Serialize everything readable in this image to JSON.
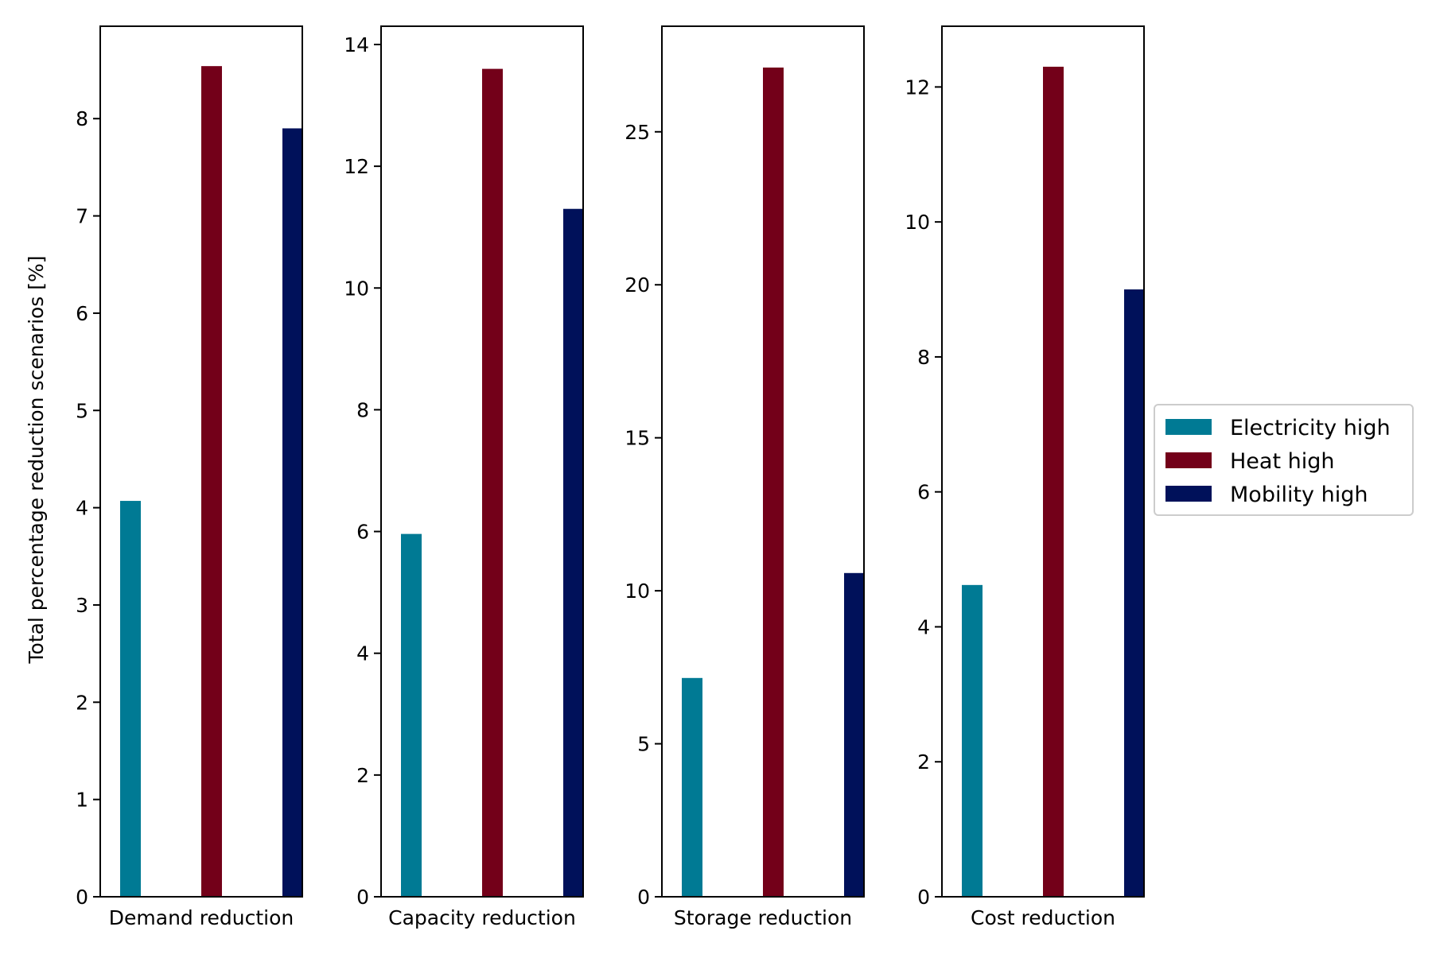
{
  "chart_data": {
    "type": "bar",
    "ylabel": "Total percentage reduction scenarios [%]",
    "legend": {
      "placement": "center-right",
      "entries": [
        "Electricity high",
        "Heat high",
        "Mobility high"
      ]
    },
    "series_colors": {
      "Electricity high": "#007a94",
      "Heat high": "#730019",
      "Mobility high": "#00115a"
    },
    "panels": [
      {
        "xlabel": "Demand reduction",
        "ylim": [
          0,
          8.95
        ],
        "yticks": [
          0,
          1,
          2,
          3,
          4,
          5,
          6,
          7,
          8
        ],
        "values": {
          "Electricity high": 4.07,
          "Heat high": 8.54,
          "Mobility high": 7.9
        }
      },
      {
        "xlabel": "Capacity reduction",
        "ylim": [
          0,
          14.3
        ],
        "yticks": [
          0,
          2,
          4,
          6,
          8,
          10,
          12,
          14
        ],
        "values": {
          "Electricity high": 5.96,
          "Heat high": 13.6,
          "Mobility high": 11.3
        }
      },
      {
        "xlabel": "Storage reduction",
        "ylim": [
          0,
          28.45
        ],
        "yticks": [
          0,
          5,
          10,
          15,
          20,
          25
        ],
        "values": {
          "Electricity high": 7.15,
          "Heat high": 27.1,
          "Mobility high": 10.58
        }
      },
      {
        "xlabel": "Cost reduction",
        "ylim": [
          0,
          12.9
        ],
        "yticks": [
          0,
          2,
          4,
          6,
          8,
          10,
          12
        ],
        "values": {
          "Electricity high": 4.62,
          "Heat high": 12.3,
          "Mobility high": 9.0
        }
      }
    ]
  }
}
